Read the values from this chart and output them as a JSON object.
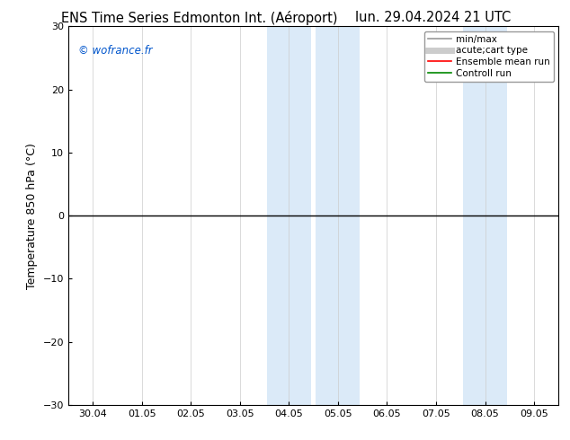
{
  "title_left": "ENS Time Series Edmonton Int. (Aéroport)",
  "title_right": "lun. 29.04.2024 21 UTC",
  "ylabel": "Temperature 850 hPa (°C)",
  "ylim": [
    -30,
    30
  ],
  "yticks": [
    -30,
    -20,
    -10,
    0,
    10,
    20,
    30
  ],
  "xlim_min": -0.5,
  "xlim_max": 9.5,
  "xtick_positions": [
    0,
    1,
    2,
    3,
    4,
    5,
    6,
    7,
    8,
    9
  ],
  "xtick_labels": [
    "30.04",
    "01.05",
    "02.05",
    "03.05",
    "04.05",
    "05.05",
    "06.05",
    "07.05",
    "08.05",
    "09.05"
  ],
  "shaded_bands": [
    {
      "xmin": 3.5,
      "xmax": 4.5,
      "color": "#daeaf7",
      "alpha": 1.0
    },
    {
      "xmin": 4.5,
      "xmax": 5.5,
      "color": "#daeaf7",
      "alpha": 1.0
    },
    {
      "xmin": 7.5,
      "xmax": 8.5,
      "color": "#daeaf7",
      "alpha": 1.0
    }
  ],
  "hline_y": 0,
  "hline_color": "#000000",
  "hline_lw": 1.0,
  "watermark": "© wofrance.fr",
  "watermark_color": "#0055cc",
  "legend_items": [
    {
      "label": "min/max",
      "color": "#999999",
      "lw": 1.2,
      "ls": "-"
    },
    {
      "label": "acute;cart type",
      "color": "#cccccc",
      "lw": 5,
      "ls": "-"
    },
    {
      "label": "Ensemble mean run",
      "color": "#ff0000",
      "lw": 1.2,
      "ls": "-"
    },
    {
      "label": "Controll run",
      "color": "#008800",
      "lw": 1.2,
      "ls": "-"
    }
  ],
  "bg_color": "#ffffff",
  "plot_bg_color": "#ffffff",
  "title_fontsize": 10.5,
  "tick_fontsize": 8,
  "ylabel_fontsize": 9,
  "legend_fontsize": 7.5
}
